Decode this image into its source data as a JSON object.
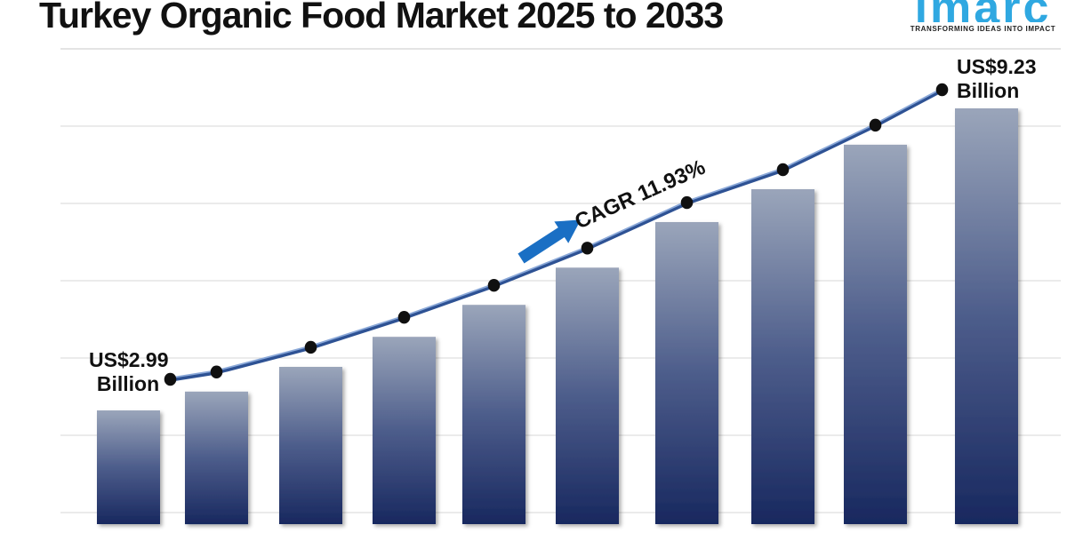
{
  "header": {
    "title": "Turkey Organic Food Market 2025 to 2033"
  },
  "logo": {
    "brand": "imarc",
    "tagline": "TRANSFORMING IDEAS INTO IMPACT"
  },
  "annotations": {
    "start_label": {
      "line1": "US$2.99",
      "line2": "Billion"
    },
    "end_label": {
      "line1": "US$9.23",
      "line2": "Billion"
    },
    "cagr_label": "CAGR 11.93%"
  },
  "colors": {
    "background": "#FFFFFF",
    "title_text": "#111111",
    "label_text": "#111111",
    "bar_gradient_top": "#9AA5BA",
    "bar_gradient_mid": "#4D5D8B",
    "bar_gradient_bottom": "#18285F",
    "trend_line": "#2E5294",
    "trend_line_highlight": "#8AA8D8",
    "marker": "#101010",
    "arrow": "#1A6FC4",
    "gridline": "#D7D7D7",
    "gridline_top": "#C9C9C9",
    "logo_blue": "#2FA8E1",
    "tagline_text": "#222222"
  },
  "chart_data": {
    "type": "bar",
    "subtype": "bar-with-trend-line-overlay",
    "title": "Turkey Organic Food Market 2025 to 2033",
    "unit": "US$ Billion",
    "num_points": 10,
    "values": [
      2.99,
      3.38,
      3.89,
      4.51,
      5.17,
      5.94,
      6.88,
      7.56,
      8.48,
      9.23
    ],
    "value_range_shown": [
      2.99,
      9.23
    ],
    "first_value_label": "US$2.99 Billion",
    "last_value_label": "US$9.23 Billion",
    "cagr": "11.93%",
    "x_axis_labels_visible": false,
    "y_axis_labels_visible": false,
    "grid": "horizontal-only",
    "legend": "none",
    "trend_line": true,
    "markers": "black-dots",
    "note": "Only the first and last bars carry data labels; intermediate values are estimated from bar heights between the two labeled endpoints."
  }
}
